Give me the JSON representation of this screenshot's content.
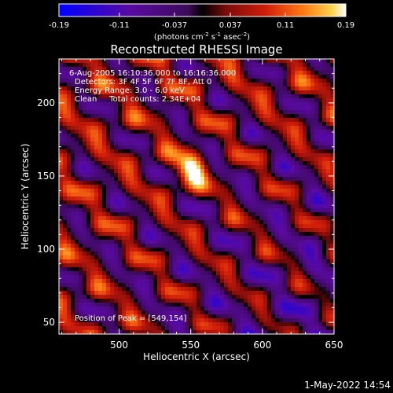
{
  "chart_data": {
    "type": "heatmap",
    "title": "Reconstructed RHESSI Image",
    "xlabel": "Heliocentric X (arcsec)",
    "ylabel": "Heliocentric Y (arcsec)",
    "xlim": [
      458,
      650
    ],
    "ylim": [
      42,
      230
    ],
    "xticks": [
      500,
      550,
      600,
      650
    ],
    "yticks": [
      50,
      100,
      150,
      200
    ],
    "colorbar": {
      "ticks": [
        "-0.19",
        "-0.11",
        "-0.037",
        "0.037",
        "0.11",
        "0.19"
      ],
      "label_parts": [
        "(photons cm",
        "-2",
        " s",
        "-1",
        " asec",
        "-2",
        ")"
      ],
      "vmin": -0.19,
      "vmax": 0.19
    },
    "annotations": [
      "6-Aug-2005 16:10:36.000 to 16:16:36.000",
      "Detectors: 3F 4F 5F 6F 7F 8F, Att 0",
      "Energy Range: 3.0 - 6.0 keV",
      "Clean     Total counts: 2.34E+04"
    ],
    "peak_label": "Position of Peak = [549,154]",
    "peak": {
      "x": 549,
      "y": 154,
      "value": 0.19
    },
    "grid": false
  },
  "footer": {
    "date": "1-May-2022 14:54"
  },
  "colors": {
    "background": "#000000",
    "colormap": [
      "#0000ff",
      "#5a0aa0",
      "#3c0a5a",
      "#000000",
      "#7a0a0a",
      "#d21e0a",
      "#ff7814",
      "#ffd24b",
      "#ffffff"
    ]
  }
}
